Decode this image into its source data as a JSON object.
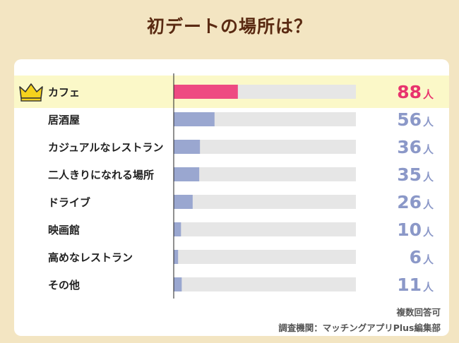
{
  "header": {
    "title": "初デートの場所は？"
  },
  "colors": {
    "background": "#f3e5c2",
    "highlight_row": "#fbf8c8",
    "top_bar": "#ee4a82",
    "bar": "#9aa7d0",
    "track": "#e6e6e6",
    "top_value_text": "#e8336e",
    "value_text": "#8b98c8",
    "crown_icon": "crown-icon"
  },
  "chart_data": {
    "type": "bar",
    "orientation": "horizontal",
    "categories": [
      "カフェ",
      "居酒屋",
      "カジュアルなレストラン",
      "二人きりになれる場所",
      "ドライブ",
      "映画館",
      "高めなレストラン",
      "その他"
    ],
    "values": [
      88,
      56,
      36,
      35,
      26,
      10,
      6,
      11
    ],
    "unit": "人",
    "xlim": [
      0,
      250
    ],
    "highlighted_category": "カフェ",
    "legend": "none",
    "grid": false
  },
  "footer": {
    "note": "複数回答可",
    "source": "調査機関：マッチングアプリPlus編集部"
  }
}
